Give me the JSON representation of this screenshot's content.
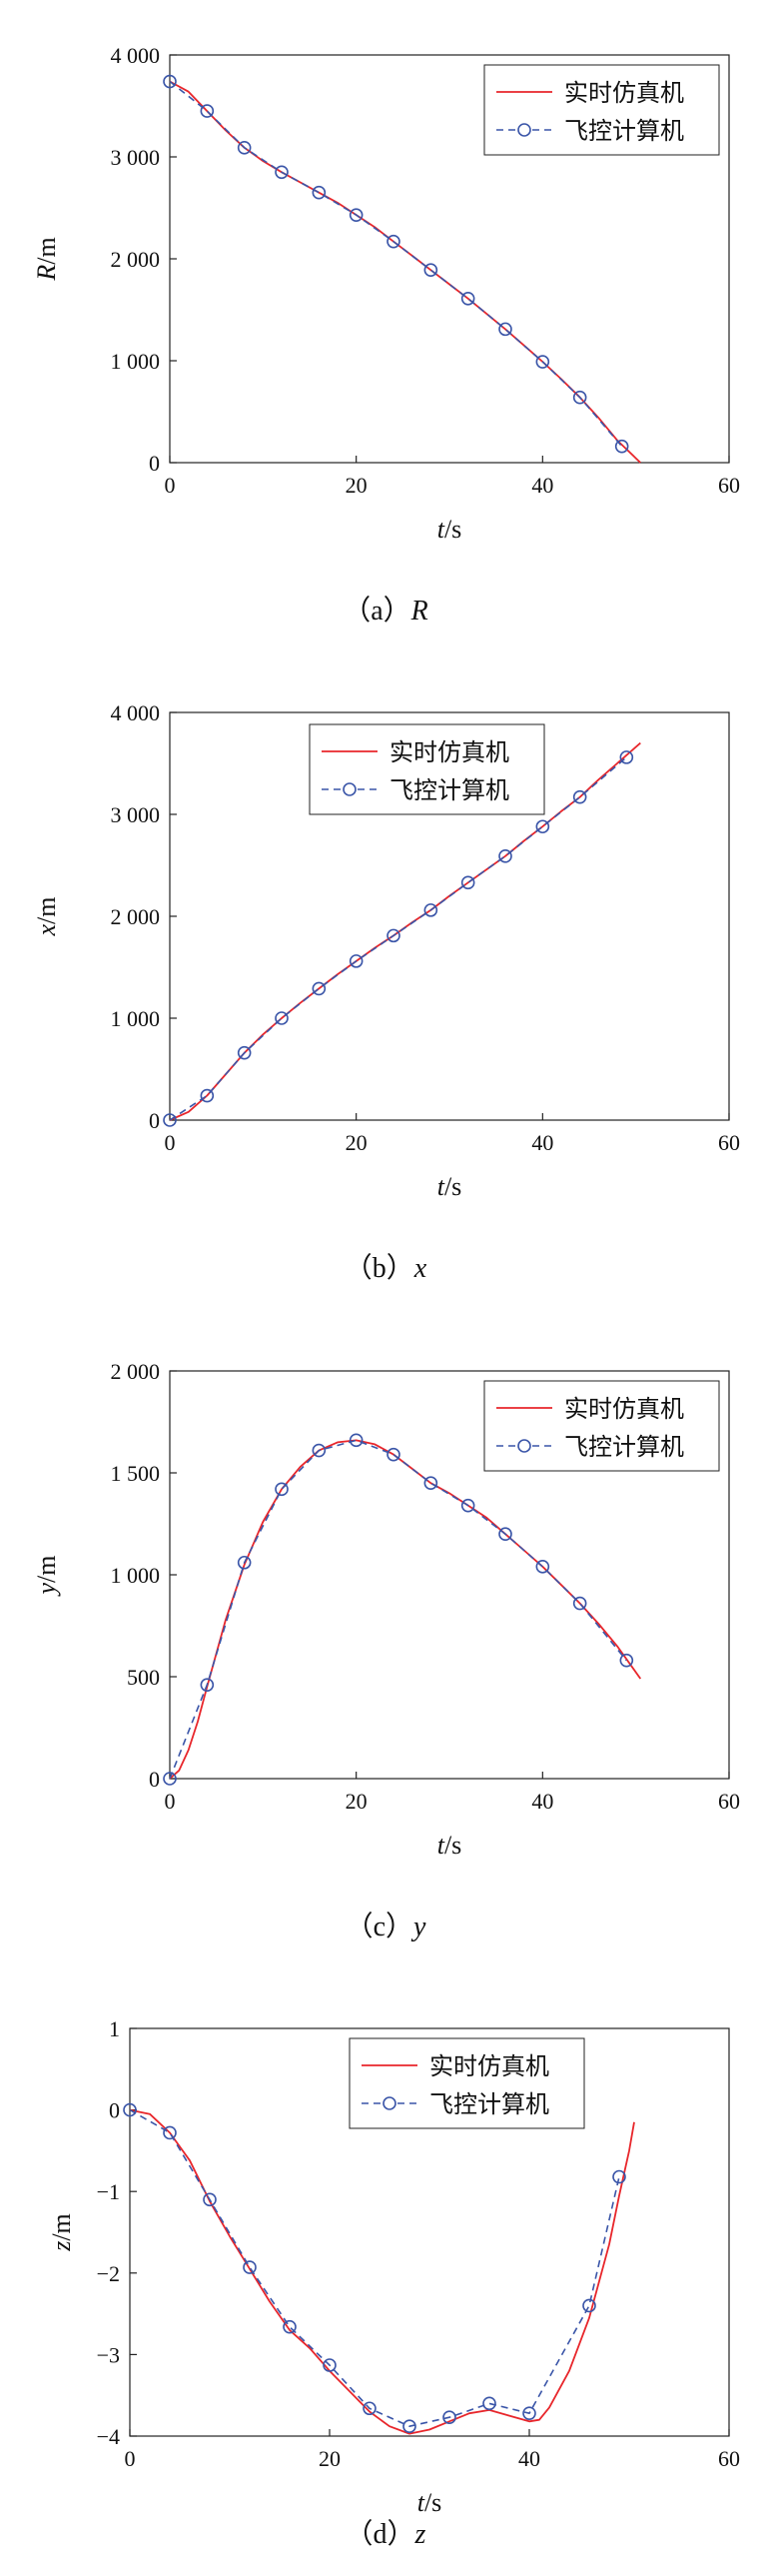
{
  "colors": {
    "sim": "#e8262b",
    "fc": "#3a55a8",
    "axis": "#222222"
  },
  "legend": {
    "sim": "实时仿真机",
    "fc": "飞控计算机"
  },
  "chart_data": [
    {
      "type": "line",
      "caption_prefix": "（a）",
      "caption_var": "R",
      "ylabel_var": "R",
      "ylabel_unit": "/m",
      "xlabel_var": "t",
      "xlabel_unit": "/s",
      "xlim": [
        0,
        60
      ],
      "ylim": [
        0,
        4000
      ],
      "xticks": [
        0,
        20,
        40,
        60
      ],
      "yticks": [
        0,
        1000,
        2000,
        3000,
        4000
      ],
      "xtick_labels": [
        "0",
        "20",
        "40",
        "60"
      ],
      "ytick_labels": [
        "0",
        "1 000",
        "2 000",
        "3 000",
        "4 000"
      ],
      "legend_position": "top-right",
      "series": [
        {
          "name": "实时仿真机",
          "style": "solid",
          "x": [
            0,
            2,
            4,
            6,
            8,
            10,
            12,
            14,
            16,
            18,
            20,
            22,
            24,
            26,
            28,
            30,
            32,
            34,
            36,
            38,
            40,
            42,
            44,
            46,
            48,
            50.5
          ],
          "y": [
            3740,
            3640,
            3450,
            3260,
            3090,
            2960,
            2850,
            2750,
            2650,
            2550,
            2430,
            2310,
            2170,
            2030,
            1890,
            1750,
            1610,
            1460,
            1310,
            1150,
            990,
            820,
            640,
            440,
            220,
            0
          ]
        },
        {
          "name": "飞控计算机",
          "style": "dashed",
          "markers": true,
          "x": [
            0,
            4,
            8,
            12,
            16,
            20,
            24,
            28,
            32,
            36,
            40,
            44,
            48.5
          ],
          "y": [
            3740,
            3450,
            3090,
            2850,
            2650,
            2430,
            2170,
            1890,
            1610,
            1310,
            990,
            640,
            160
          ]
        }
      ]
    },
    {
      "type": "line",
      "caption_prefix": "（b）",
      "caption_var": "x",
      "ylabel_var": "x",
      "ylabel_unit": "/m",
      "xlabel_var": "t",
      "xlabel_unit": "/s",
      "xlim": [
        0,
        60
      ],
      "ylim": [
        0,
        4000
      ],
      "xticks": [
        0,
        20,
        40,
        60
      ],
      "yticks": [
        0,
        1000,
        2000,
        3000,
        4000
      ],
      "xtick_labels": [
        "0",
        "20",
        "40",
        "60"
      ],
      "ytick_labels": [
        "0",
        "1 000",
        "2 000",
        "3 000",
        "4 000"
      ],
      "legend_position": "top-center",
      "series": [
        {
          "name": "实时仿真机",
          "style": "solid",
          "x": [
            0,
            2,
            4,
            6,
            8,
            10,
            12,
            14,
            16,
            18,
            20,
            22,
            24,
            26,
            28,
            30,
            32,
            34,
            36,
            38,
            40,
            42,
            44,
            46,
            48,
            50.5
          ],
          "y": [
            0,
            80,
            240,
            450,
            660,
            840,
            1000,
            1150,
            1290,
            1430,
            1560,
            1690,
            1810,
            1940,
            2060,
            2200,
            2330,
            2460,
            2590,
            2740,
            2880,
            3030,
            3170,
            3340,
            3500,
            3700
          ]
        },
        {
          "name": "飞控计算机",
          "style": "dashed",
          "markers": true,
          "x": [
            0,
            4,
            8,
            12,
            16,
            20,
            24,
            28,
            32,
            36,
            40,
            44,
            49
          ],
          "y": [
            0,
            240,
            660,
            1000,
            1290,
            1560,
            1810,
            2060,
            2330,
            2590,
            2880,
            3170,
            3560
          ]
        }
      ]
    },
    {
      "type": "line",
      "caption_prefix": "（c）",
      "caption_var": "y",
      "ylabel_var": "y",
      "ylabel_unit": "/m",
      "xlabel_var": "t",
      "xlabel_unit": "/s",
      "xlim": [
        0,
        60
      ],
      "ylim": [
        0,
        2000
      ],
      "xticks": [
        0,
        20,
        40,
        60
      ],
      "yticks": [
        0,
        500,
        1000,
        1500,
        2000
      ],
      "xtick_labels": [
        "0",
        "20",
        "40",
        "60"
      ],
      "ytick_labels": [
        "0",
        "500",
        "1 000",
        "1 500",
        "2 000"
      ],
      "legend_position": "top-right",
      "series": [
        {
          "name": "实时仿真机",
          "style": "solid",
          "x": [
            0,
            1,
            2,
            3,
            4,
            6,
            8,
            10,
            12,
            14,
            16,
            18,
            20,
            22,
            24,
            26,
            28,
            30,
            32,
            34,
            36,
            38,
            40,
            42,
            44,
            46,
            48,
            50.5
          ],
          "y": [
            0,
            40,
            140,
            280,
            450,
            780,
            1050,
            1260,
            1420,
            1530,
            1610,
            1650,
            1660,
            1640,
            1590,
            1520,
            1450,
            1400,
            1340,
            1280,
            1200,
            1120,
            1040,
            950,
            860,
            760,
            650,
            490
          ]
        },
        {
          "name": "飞控计算机",
          "style": "dashed",
          "markers": true,
          "x": [
            0,
            4,
            8,
            12,
            16,
            20,
            24,
            28,
            32,
            36,
            40,
            44,
            49
          ],
          "y": [
            0,
            460,
            1060,
            1420,
            1610,
            1660,
            1590,
            1450,
            1340,
            1200,
            1040,
            860,
            580
          ]
        }
      ]
    },
    {
      "type": "line",
      "caption_prefix": "（d）",
      "caption_var": "z",
      "ylabel_var": "z",
      "ylabel_unit": "/m",
      "xlabel_var": "t",
      "xlabel_unit": "/s",
      "xlim": [
        0,
        60
      ],
      "ylim": [
        -4,
        1
      ],
      "xticks": [
        0,
        20,
        40,
        60
      ],
      "yticks": [
        -4,
        -3,
        -2,
        -1,
        0,
        1
      ],
      "xtick_labels": [
        "0",
        "20",
        "40",
        "60"
      ],
      "ytick_labels": [
        "−4",
        "−3",
        "−2",
        "−1",
        "0",
        "1"
      ],
      "legend_position": "top-center",
      "series": [
        {
          "name": "实时仿真机",
          "style": "solid",
          "x": [
            0,
            2,
            4,
            6,
            8,
            10,
            12,
            14,
            16,
            18,
            20,
            22,
            24,
            26,
            28,
            30,
            32,
            34,
            36,
            38,
            40,
            41,
            42,
            44,
            46,
            48,
            49,
            50,
            50.5
          ],
          "y": [
            0,
            -0.05,
            -0.28,
            -0.62,
            -1.12,
            -1.55,
            -1.95,
            -2.35,
            -2.7,
            -2.92,
            -3.2,
            -3.45,
            -3.7,
            -3.88,
            -3.97,
            -3.92,
            -3.82,
            -3.72,
            -3.68,
            -3.75,
            -3.82,
            -3.8,
            -3.65,
            -3.2,
            -2.55,
            -1.65,
            -1.05,
            -0.5,
            -0.15
          ]
        },
        {
          "name": "飞控计算机",
          "style": "dashed",
          "markers": true,
          "x": [
            0,
            4,
            8,
            12,
            16,
            20,
            24,
            28,
            32,
            36,
            40,
            46,
            49
          ],
          "y": [
            0,
            -0.28,
            -1.1,
            -1.93,
            -2.66,
            -3.13,
            -3.66,
            -3.88,
            -3.77,
            -3.6,
            -3.72,
            -2.4,
            -0.82
          ]
        }
      ]
    }
  ]
}
